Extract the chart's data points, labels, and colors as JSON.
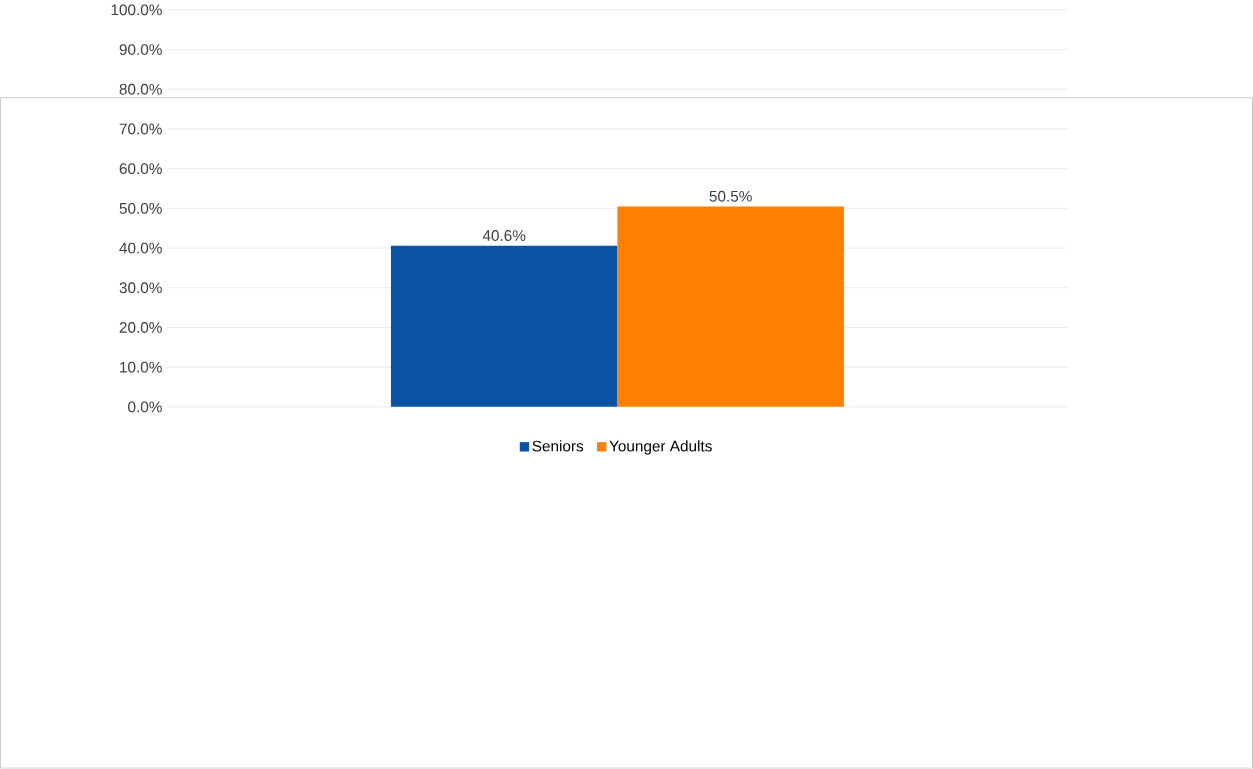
{
  "chart_data": {
    "type": "bar",
    "categories": [
      null
    ],
    "series": [
      {
        "name": "Seniors",
        "color": "#0a52a3",
        "values": [
          40.6
        ],
        "value_labels": [
          "40.6%"
        ]
      },
      {
        "name": "Younger Adults",
        "color": "#ff7f00",
        "values": [
          50.5
        ],
        "value_labels": [
          "50.5%"
        ]
      }
    ],
    "ylim": [
      0,
      100
    ],
    "yticks": [
      {
        "value": 0,
        "label": "0.0%"
      },
      {
        "value": 10,
        "label": "10.0%"
      },
      {
        "value": 20,
        "label": "20.0%"
      },
      {
        "value": 30,
        "label": "30.0%"
      },
      {
        "value": 40,
        "label": "40.0%"
      },
      {
        "value": 50,
        "label": "50.0%"
      },
      {
        "value": 60,
        "label": "60.0%"
      },
      {
        "value": 70,
        "label": "70.0%"
      },
      {
        "value": 80,
        "label": "80.0%"
      },
      {
        "value": 90,
        "label": "90.0%"
      },
      {
        "value": 100,
        "label": "100.0%"
      }
    ],
    "grid": "y",
    "legend": "bottom"
  }
}
